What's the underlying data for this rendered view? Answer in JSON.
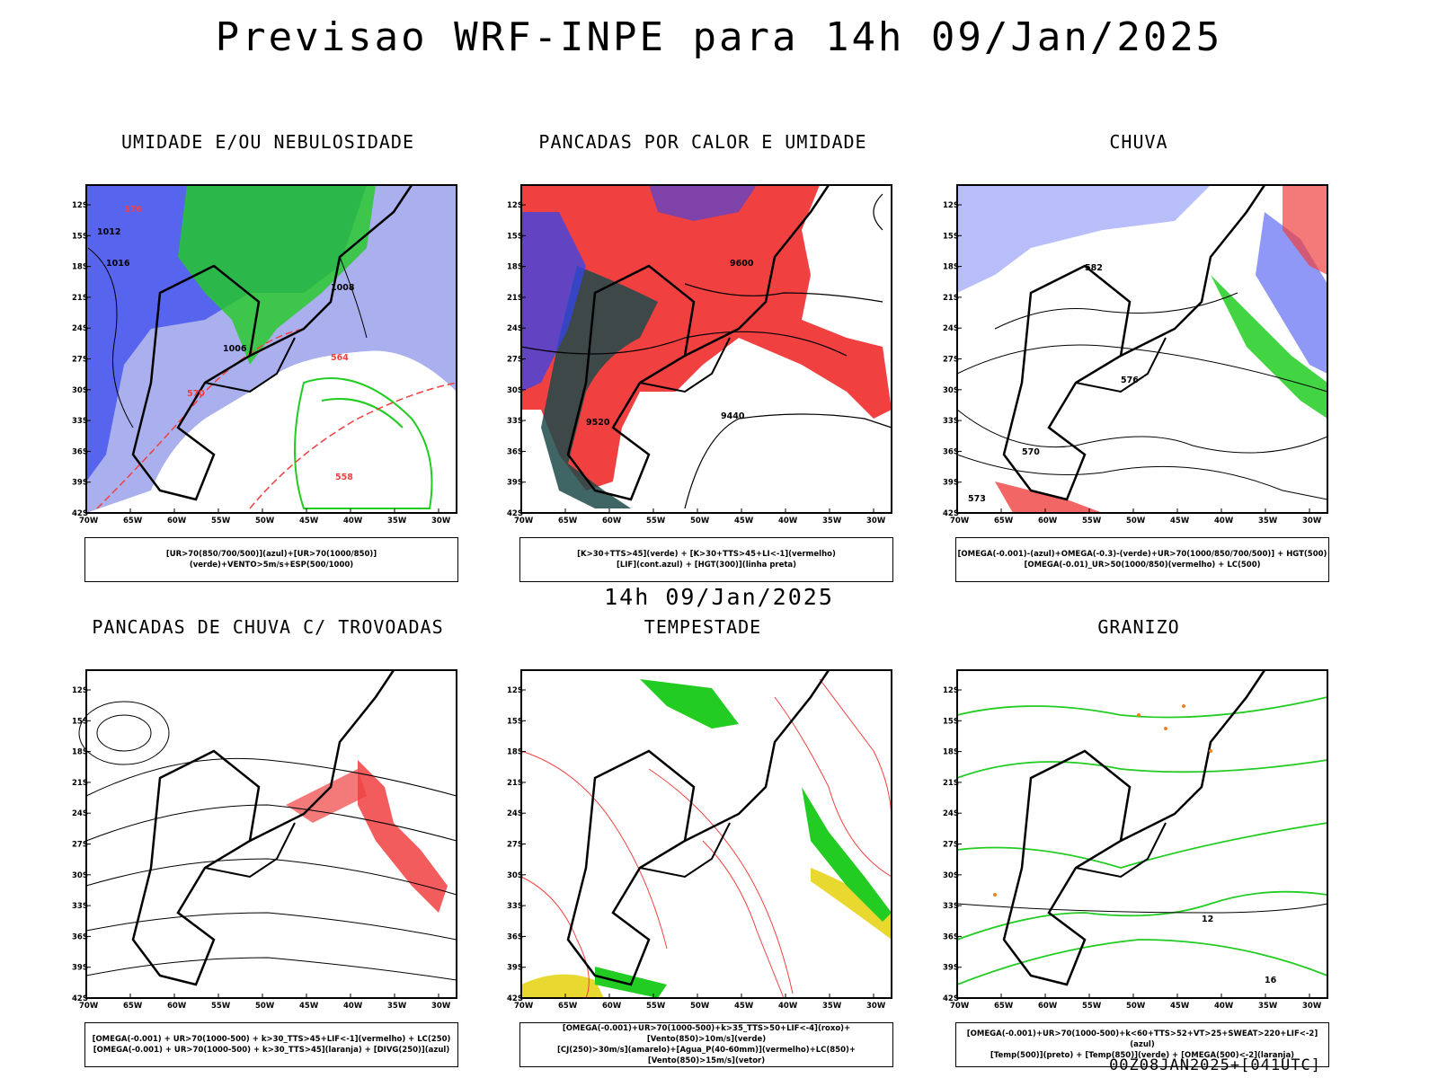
{
  "header": {
    "title": "Previsao WRF-INPE  para 14h 09/Jan/2025"
  },
  "middle": {
    "time_label": "14h 09/Jan/2025"
  },
  "footer": {
    "run_label": "00Z08JAN2025+[041UTC]"
  },
  "axes": {
    "lat_labels": [
      "12S",
      "15S",
      "18S",
      "21S",
      "24S",
      "27S",
      "30S",
      "33S",
      "36S",
      "39S",
      "42S"
    ],
    "lon_labels": [
      "70W",
      "65W",
      "60W",
      "55W",
      "50W",
      "45W",
      "40W",
      "35W",
      "30W"
    ]
  },
  "colors": {
    "red": "#f04040",
    "green": "#22cc22",
    "blue": "#3344ee",
    "lavender": "#aab0ee",
    "teal": "#1f4a4a",
    "yellow": "#e8d830",
    "orange": "#f08020",
    "black": "#000000"
  },
  "panels": [
    {
      "title": "UMIDADE E/OU NEBULOSIDADE",
      "legend": [
        "[UR>70(850/700/500)](azul)+[UR>70(1000/850)](verde)+VENTO>5m/s+ESP(500/1000)"
      ],
      "contour_labels": [
        "1008",
        "1012",
        "1016",
        "1006",
        "576",
        "570",
        "564",
        "558"
      ]
    },
    {
      "title": "PANCADAS POR CALOR E UMIDADE",
      "legend": [
        "[K>30+TTS>45](verde) + [K>30+TTS>45+LI<-1](vermelho)",
        "[LIF](cont.azul) + [HGT(300)](linha preta)"
      ],
      "contour_labels": [
        "9600",
        "9520",
        "9440"
      ]
    },
    {
      "title": "CHUVA",
      "legend": [
        "[OMEGA(-0.001)-(azul)+OMEGA(-0.3)-(verde)+UR>70(1000/850/700/500)] + HGT(500)",
        "[OMEGA(-0.01)_UR>50(1000/850)(vermelho) + LC(500)"
      ],
      "contour_labels": [
        "582",
        "576",
        "570",
        "573"
      ]
    },
    {
      "title": "PANCADAS DE CHUVA C/ TROVOADAS",
      "legend": [
        "[OMEGA(-0.001) + UR>70(1000-500) + k>30_TTS>45+LIF<-1](vermelho) + LC(250)",
        "[OMEGA(-0.001) + UR>70(1000-500) + k>30_TTS>45](laranja) + [DIVG(250)](azul)"
      ],
      "contour_labels": []
    },
    {
      "title": "TEMPESTADE",
      "legend": [
        "[OMEGA(-0.001)+UR>70(1000-500)+k>35_TTS>50+LIF<-4](roxo)+[Vento(850)>10m/s](verde)",
        "[CJ(250)>30m/s](amarelo)+[Agua_P(40-60mm)](vermelho)+LC(850)+[Vento(850)>15m/s](vetor)"
      ],
      "contour_labels": []
    },
    {
      "title": "GRANIZO",
      "legend": [
        "[OMEGA(-0.001)+UR>70(1000-500)+k<60+TTS>52+VT>25+SWEAT>220+LIF<-2](azul)",
        "[Temp(500)](preto) + [Temp(850)](verde) + [OMEGA(500)<-2](laranja)"
      ],
      "contour_labels": [
        "12",
        "16"
      ]
    }
  ]
}
